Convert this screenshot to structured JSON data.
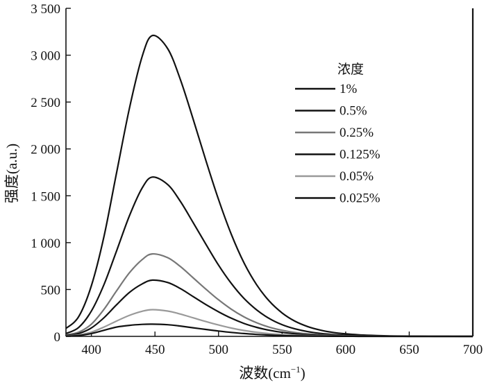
{
  "chart_data": {
    "type": "line",
    "xlabel_main": "波数(cm",
    "xlabel_sup": "−1",
    "xlabel_close": ")",
    "ylabel": "强度(a.u.)",
    "xlim": [
      380,
      700
    ],
    "ylim": [
      0,
      3500
    ],
    "x_ticks": [
      400,
      450,
      500,
      550,
      600,
      650,
      700
    ],
    "x_tick_labels": [
      "400",
      "450",
      "500",
      "550",
      "600",
      "650",
      "700"
    ],
    "y_ticks": [
      0,
      500,
      1000,
      1500,
      2000,
      2500,
      3000,
      3500
    ],
    "y_tick_labels": [
      "0",
      "500",
      "1 000",
      "1 500",
      "2 000",
      "2 500",
      "3 000",
      "3 500"
    ],
    "legend_title": "浓度",
    "legend_position": "upper-right",
    "grid": false,
    "series": [
      {
        "name": "1%",
        "color": "#111111",
        "peak_x": 448,
        "peak_y": 3210,
        "x": [
          380,
          390,
          400,
          410,
          420,
          430,
          440,
          448,
          460,
          470,
          480,
          490,
          500,
          510,
          520,
          530,
          540,
          550,
          560,
          570,
          580,
          590,
          600,
          610,
          620,
          630,
          640,
          650,
          660,
          670,
          680,
          690,
          700
        ],
        "y": [
          85,
          210,
          540,
          1070,
          1760,
          2440,
          2990,
          3210,
          3070,
          2740,
          2320,
          1880,
          1460,
          1090,
          785,
          550,
          375,
          250,
          163,
          105,
          67,
          42,
          27,
          17,
          11,
          7,
          4,
          3,
          2,
          1,
          1,
          0,
          0
        ]
      },
      {
        "name": "0.5%",
        "color": "#111111",
        "peak_x": 448,
        "peak_y": 1700,
        "x": [
          380,
          390,
          400,
          410,
          420,
          430,
          440,
          448,
          460,
          470,
          480,
          490,
          500,
          510,
          520,
          530,
          540,
          550,
          560,
          570,
          580,
          590,
          600,
          610,
          620,
          630,
          640,
          650,
          660,
          670,
          680,
          690,
          700
        ],
        "y": [
          30,
          95,
          270,
          555,
          920,
          1290,
          1585,
          1700,
          1620,
          1440,
          1215,
          985,
          760,
          565,
          405,
          282,
          190,
          125,
          81,
          51,
          32,
          20,
          12,
          7,
          4,
          3,
          2,
          1,
          1,
          0,
          0,
          0,
          0
        ]
      },
      {
        "name": "0.25%",
        "color": "#777777",
        "peak_x": 448,
        "peak_y": 880,
        "x": [
          380,
          390,
          400,
          410,
          420,
          430,
          440,
          448,
          460,
          470,
          480,
          490,
          500,
          510,
          520,
          530,
          540,
          550,
          560,
          570,
          580,
          590,
          600,
          610,
          620,
          630,
          640,
          650,
          660,
          670,
          680,
          690,
          700
        ],
        "y": [
          15,
          45,
          130,
          290,
          490,
          680,
          820,
          880,
          840,
          745,
          625,
          505,
          390,
          290,
          208,
          145,
          98,
          65,
          42,
          27,
          17,
          10,
          6,
          4,
          2,
          1,
          1,
          0,
          0,
          0,
          0,
          0,
          0
        ]
      },
      {
        "name": "0.125%",
        "color": "#111111",
        "peak_x": 448,
        "peak_y": 600,
        "x": [
          380,
          390,
          400,
          410,
          420,
          430,
          440,
          448,
          460,
          470,
          480,
          490,
          500,
          510,
          520,
          530,
          540,
          550,
          560,
          570,
          580,
          590,
          600,
          610,
          620,
          630,
          640,
          650,
          660,
          670,
          680,
          690,
          700
        ],
        "y": [
          10,
          30,
          90,
          200,
          340,
          470,
          560,
          600,
          575,
          510,
          425,
          340,
          262,
          194,
          138,
          96,
          65,
          43,
          28,
          18,
          11,
          7,
          4,
          3,
          2,
          1,
          1,
          0,
          0,
          0,
          0,
          0,
          0
        ]
      },
      {
        "name": "0.05%",
        "color": "#999999",
        "peak_x": 448,
        "peak_y": 285,
        "x": [
          380,
          390,
          400,
          410,
          420,
          430,
          440,
          448,
          460,
          470,
          480,
          490,
          500,
          510,
          520,
          530,
          540,
          550,
          560,
          570,
          580,
          590,
          600,
          610,
          620,
          630,
          640,
          650,
          660,
          670,
          680,
          690,
          700
        ],
        "y": [
          5,
          15,
          45,
          100,
          165,
          225,
          268,
          285,
          270,
          238,
          198,
          158,
          121,
          89,
          63,
          44,
          29,
          19,
          12,
          8,
          5,
          3,
          2,
          1,
          1,
          0,
          0,
          0,
          0,
          0,
          0,
          0,
          0
        ]
      },
      {
        "name": "0.025%",
        "color": "#111111",
        "peak_x": 448,
        "peak_y": 130,
        "x": [
          380,
          390,
          400,
          410,
          420,
          430,
          440,
          448,
          460,
          470,
          480,
          490,
          500,
          510,
          520,
          530,
          540,
          550,
          560,
          570,
          580,
          590,
          600,
          610,
          620,
          630,
          640,
          650,
          660,
          670,
          680,
          690,
          700
        ],
        "y": [
          3,
          9,
          30,
          65,
          100,
          118,
          128,
          130,
          124,
          110,
          92,
          74,
          57,
          42,
          30,
          21,
          14,
          9,
          6,
          4,
          2,
          1,
          1,
          0,
          0,
          0,
          0,
          0,
          0,
          0,
          0,
          0,
          0
        ]
      }
    ]
  }
}
